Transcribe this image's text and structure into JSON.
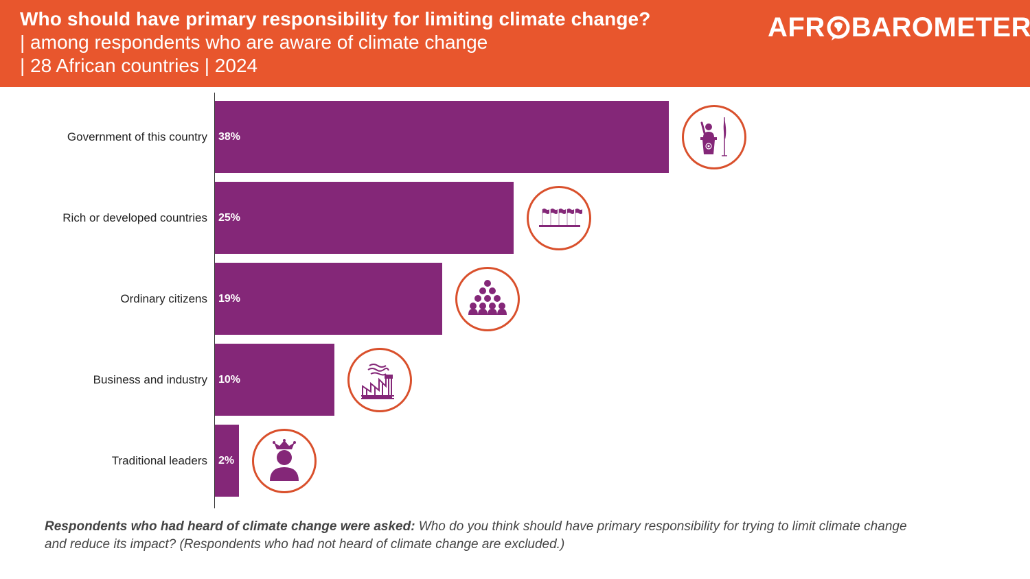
{
  "header": {
    "title": "Who should have primary responsibility for limiting climate change?",
    "subtitle_line1": "| among respondents who are aware of climate change",
    "subtitle_line2": "| 28 African countries | 2024",
    "logo_prefix": "AFR",
    "logo_suffix": "BAROMETER",
    "background_color": "#e8562d"
  },
  "chart_data": {
    "type": "bar",
    "orientation": "horizontal",
    "title": "Who should have primary responsibility for limiting climate change?",
    "xlabel": "",
    "ylabel": "",
    "unit": "%",
    "xlim": [
      0,
      38
    ],
    "grid": false,
    "legend": "none",
    "bar_color": "#842778",
    "categories": [
      "Government of this country",
      "Rich or developed countries",
      "Ordinary citizens",
      "Business and industry",
      "Traditional leaders"
    ],
    "values": [
      38,
      25,
      19,
      10,
      2
    ],
    "data_labels": [
      "38%",
      "25%",
      "19%",
      "10%",
      "2%"
    ],
    "icons": [
      "politician-podium-icon",
      "flags-row-icon",
      "crowd-icon",
      "factory-icon",
      "crowned-person-icon"
    ]
  },
  "footnote": {
    "bold_part": "Respondents who had heard of climate change were asked:",
    "italic_part": " Who do you think should have primary responsibility for trying to limit climate change and reduce its impact? (Respondents who had not heard of climate change are excluded.)"
  }
}
